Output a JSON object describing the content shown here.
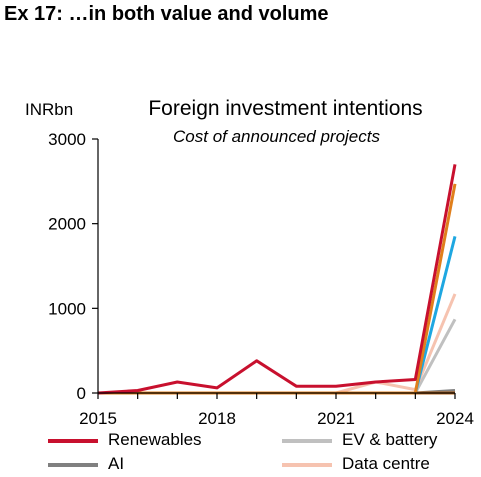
{
  "header": {
    "exhibit_title": "Ex 17: …in both value and volume"
  },
  "chart_data": {
    "type": "line",
    "title": "Foreign investment intentions",
    "subtitle": "Cost of announced projects",
    "ylabel": "INRbn",
    "ylim": [
      0,
      3000
    ],
    "xlim": [
      2015,
      2024
    ],
    "yticks": [
      0,
      1000,
      2000,
      3000
    ],
    "xticks": [
      2015,
      2018,
      2021,
      2024
    ],
    "grid": false,
    "legend_position": "bottom",
    "series": [
      {
        "name": "Renewables",
        "color": "#c8102e",
        "x": [
          2015,
          2016,
          2017,
          2018,
          2019,
          2020,
          2021,
          2022,
          2023,
          2024
        ],
        "values": [
          0,
          30,
          130,
          60,
          380,
          80,
          80,
          130,
          160,
          2700
        ]
      },
      {
        "name": "EV & battery",
        "color": "#c0c0c0",
        "x": [
          2015,
          2016,
          2017,
          2018,
          2019,
          2020,
          2021,
          2022,
          2023,
          2024
        ],
        "values": [
          0,
          0,
          0,
          0,
          0,
          0,
          0,
          0,
          0,
          870
        ]
      },
      {
        "name": "AI",
        "color": "#808080",
        "x": [
          2015,
          2016,
          2017,
          2018,
          2019,
          2020,
          2021,
          2022,
          2023,
          2024
        ],
        "values": [
          0,
          0,
          0,
          0,
          0,
          0,
          0,
          0,
          0,
          30
        ]
      },
      {
        "name": "Data centre",
        "color": "#f6c3b0",
        "x": [
          2015,
          2016,
          2017,
          2018,
          2019,
          2020,
          2021,
          2022,
          2023,
          2024
        ],
        "values": [
          0,
          0,
          0,
          0,
          0,
          0,
          0,
          130,
          40,
          1170
        ]
      },
      {
        "color": "#1ea7e1",
        "x": [
          2015,
          2016,
          2017,
          2018,
          2019,
          2020,
          2021,
          2022,
          2023,
          2024
        ],
        "values": [
          0,
          0,
          0,
          0,
          0,
          0,
          0,
          0,
          0,
          1850
        ]
      },
      {
        "color": "#e07f1c",
        "x": [
          2015,
          2016,
          2017,
          2018,
          2019,
          2020,
          2021,
          2022,
          2023,
          2024
        ],
        "values": [
          0,
          0,
          0,
          0,
          0,
          0,
          0,
          0,
          0,
          2470
        ]
      },
      {
        "color": "#b5651d",
        "x": [
          2015,
          2016,
          2017,
          2018,
          2019,
          2020,
          2021,
          2022,
          2023,
          2024
        ],
        "values": [
          0,
          0,
          0,
          0,
          0,
          0,
          0,
          0,
          0,
          0
        ]
      }
    ]
  }
}
